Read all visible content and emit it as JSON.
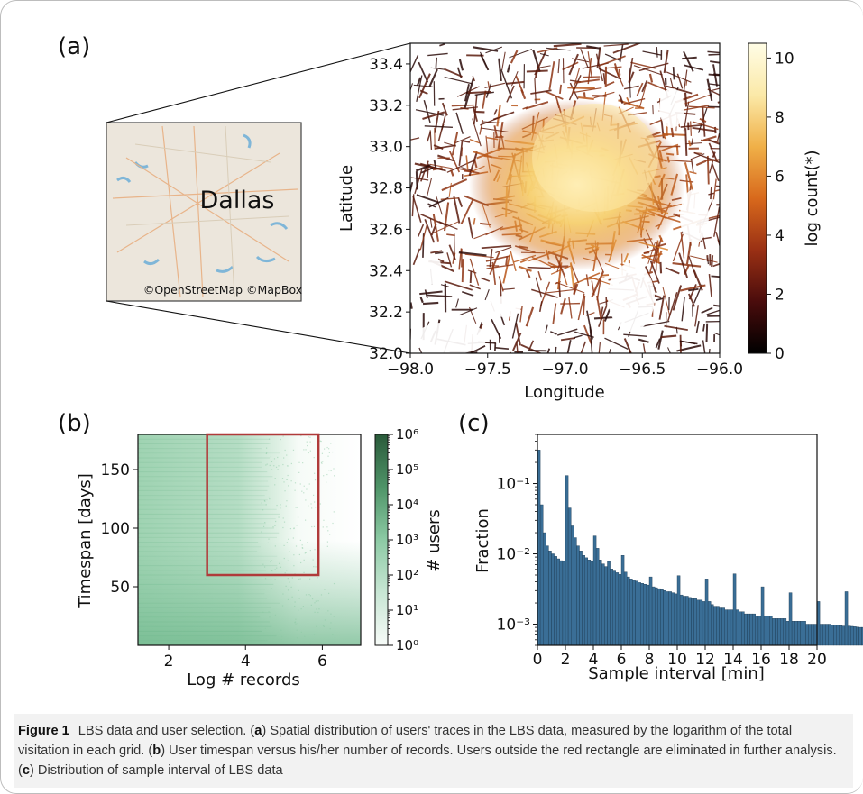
{
  "figure": {
    "panel_a": {
      "label": "(a)",
      "map_city_label": "Dallas",
      "map_credit": "©OpenStreetMap ©MapBox",
      "colorbar_label": "log count(*)",
      "colormap": [
        "#000000",
        "#4a0c0c",
        "#9a3014",
        "#d8691c",
        "#f0b048",
        "#fbe9a8",
        "#fffde6"
      ]
    },
    "panel_b": {
      "label": "(b)",
      "colorbar_label": "# users",
      "colormap": [
        "#f7fbf8",
        "#c8e6d4",
        "#8ccaa4",
        "#4f9468",
        "#2a5a3a"
      ],
      "selection_rect_color": "#b03a3a"
    },
    "panel_c": {
      "label": "(c)",
      "bar_color": "#3a6e96"
    },
    "caption": {
      "prefix": "Figure 1",
      "text_1": "LBS data and user selection. (",
      "a": "a",
      "text_2": ") Spatial distribution of users' traces in the LBS data, measured by the logarithm of the total visitation in each grid. (",
      "b": "b",
      "text_3": ") User timespan versus his/her number of records. Users outside the red rectangle are eliminated in further analysis. (",
      "c": "c",
      "text_4": ") Distribution of sample interval of LBS data"
    }
  },
  "chart_data": [
    {
      "type": "heatmap",
      "title": "",
      "xlabel": "Longitude",
      "ylabel": "Latitude",
      "xlim": [
        -98.0,
        -96.0
      ],
      "ylim": [
        32.0,
        33.5
      ],
      "xticks": [
        "−98.0",
        "−97.5",
        "−97.0",
        "−96.5",
        "−96.0"
      ],
      "yticks": [
        "32.0",
        "32.2",
        "32.4",
        "32.6",
        "32.8",
        "33.0",
        "33.2",
        "33.4"
      ],
      "colorbar": {
        "label": "log count(*)",
        "range": [
          0,
          10.5
        ],
        "ticks": [
          "0",
          "2",
          "4",
          "6",
          "8",
          "10"
        ]
      }
    },
    {
      "type": "heatmap",
      "title": "",
      "xlabel": "Log # records",
      "ylabel": "Timespan [days]",
      "xlim": [
        1.2,
        7.0
      ],
      "ylim": [
        0,
        180
      ],
      "xticks": [
        "2",
        "4",
        "6"
      ],
      "yticks": [
        "50",
        "100",
        "150"
      ],
      "selection": {
        "x": [
          3.0,
          5.9
        ],
        "y": [
          60,
          180
        ]
      },
      "colorbar": {
        "label": "# users",
        "scale": "log",
        "range": [
          1,
          1000000
        ],
        "ticks": [
          "10⁰",
          "10¹",
          "10²",
          "10³",
          "10⁴",
          "10⁵",
          "10⁶"
        ]
      }
    },
    {
      "type": "bar",
      "title": "",
      "xlabel": "Sample interval [min]",
      "ylabel": "Fraction",
      "xlim": [
        0,
        20
      ],
      "ylim": [
        0.0005,
        0.5
      ],
      "yscale": "log",
      "xticks": [
        "0",
        "2",
        "4",
        "6",
        "8",
        "10",
        "12",
        "14",
        "16",
        "18",
        "20"
      ],
      "yticks": [
        "10⁻³",
        "10⁻²",
        "10⁻¹"
      ],
      "bin_width": 0.2,
      "values": [
        0.3,
        0.05,
        0.02,
        0.013,
        0.011,
        0.01,
        0.0092,
        0.0085,
        0.008,
        0.0078,
        0.13,
        0.045,
        0.025,
        0.017,
        0.013,
        0.011,
        0.0095,
        0.0088,
        0.0082,
        0.0078,
        0.018,
        0.012,
        0.0082,
        0.0072,
        0.0066,
        0.0078,
        0.0061,
        0.0057,
        0.0054,
        0.0051,
        0.0095,
        0.0055,
        0.0047,
        0.0044,
        0.0042,
        0.0041,
        0.0039,
        0.0038,
        0.0037,
        0.0036,
        0.0047,
        0.0034,
        0.0033,
        0.0032,
        0.0031,
        0.003,
        0.0029,
        0.0029,
        0.0028,
        0.0027,
        0.0049,
        0.0026,
        0.0025,
        0.0025,
        0.0024,
        0.0023,
        0.0023,
        0.0022,
        0.0022,
        0.0021,
        0.0044,
        0.0021,
        0.0019,
        0.0018,
        0.0018,
        0.0017,
        0.0017,
        0.0016,
        0.0016,
        0.0016,
        0.0052,
        0.0016,
        0.0015,
        0.0015,
        0.0014,
        0.0014,
        0.0014,
        0.0014,
        0.0013,
        0.0013,
        0.0034,
        0.0013,
        0.0013,
        0.0013,
        0.0012,
        0.0012,
        0.0012,
        0.0012,
        0.0012,
        0.0011,
        0.0028,
        0.0011,
        0.0011,
        0.0011,
        0.0011,
        0.0011,
        0.001,
        0.001,
        0.001,
        0.001,
        0.0021,
        0.001,
        0.001,
        0.001,
        0.001,
        0.00098,
        0.00097,
        0.00096,
        0.00095,
        0.00094,
        0.0029,
        0.00094,
        0.00093,
        0.00092,
        0.00091,
        0.0009,
        0.0009,
        0.00089,
        0.00088,
        0.00087,
        0.0037,
        0.0013,
        0.0012,
        0.0011,
        0.0011,
        0.0011,
        0.0011,
        0.001,
        0.001,
        0.001,
        0.0022,
        0.001,
        0.00095,
        0.00095,
        0.00094,
        0.00093,
        0.00093,
        0.00092,
        0.00091,
        0.0009,
        0.0019,
        0.00089,
        0.00088,
        0.00088,
        0.00087,
        0.00087,
        0.00086,
        0.00086,
        0.00085,
        0.00085,
        0.0043,
        0.00097,
        0.0009,
        0.00088,
        0.00087,
        0.00086,
        0.00085,
        0.00084,
        0.00083,
        0.00082,
        0.0016,
        0.00082,
        0.00081,
        0.0008,
        0.0008,
        0.00079,
        0.00079,
        0.00078,
        0.00078,
        0.00077,
        0.0021,
        0.00077,
        0.00076,
        0.00076,
        0.00075,
        0.00075,
        0.00074,
        0.00074,
        0.00073,
        0.00073,
        0.0045,
        0.0013,
        0.0011,
        0.00082,
        0.00077,
        0.00075,
        0.00073,
        0.00072,
        0.00071,
        0.0007,
        0.0019,
        0.00072,
        0.00071,
        0.0007,
        0.0007,
        0.00069,
        0.00069,
        0.00068,
        0.00068,
        0.0019
      ]
    }
  ]
}
